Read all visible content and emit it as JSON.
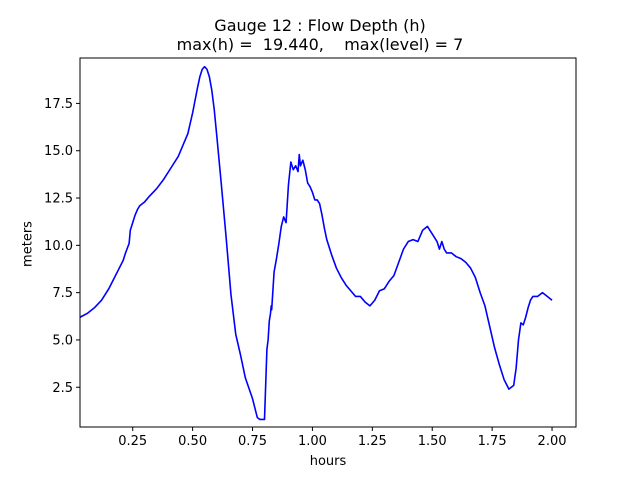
{
  "chart_data": {
    "type": "line",
    "title": "Gauge 12 : Flow Depth (h)",
    "subtitle": "max(h) =  19.440,    max(level) = 7",
    "xlabel": "hours",
    "ylabel": "meters",
    "xlim": [
      0.03,
      2.1
    ],
    "ylim": [
      0.4,
      19.9
    ],
    "xticks": [
      0.25,
      0.5,
      0.75,
      1.0,
      1.25,
      1.5,
      1.75,
      2.0
    ],
    "xtick_labels": [
      "0.25",
      "0.50",
      "0.75",
      "1.00",
      "1.25",
      "1.50",
      "1.75",
      "2.00"
    ],
    "yticks": [
      2.5,
      5.0,
      7.5,
      10.0,
      12.5,
      15.0,
      17.5
    ],
    "ytick_labels": [
      "2.5",
      "5.0",
      "7.5",
      "10.0",
      "12.5",
      "15.0",
      "17.5"
    ],
    "grid": false,
    "series": [
      {
        "color": "#0000ff",
        "x": [
          0.03,
          0.06,
          0.09,
          0.12,
          0.15,
          0.17,
          0.19,
          0.21,
          0.22,
          0.235,
          0.24,
          0.25,
          0.26,
          0.27,
          0.28,
          0.3,
          0.32,
          0.35,
          0.38,
          0.41,
          0.44,
          0.46,
          0.48,
          0.5,
          0.52,
          0.53,
          0.54,
          0.55,
          0.56,
          0.57,
          0.58,
          0.59,
          0.6,
          0.62,
          0.64,
          0.66,
          0.68,
          0.7,
          0.72,
          0.75,
          0.77,
          0.78,
          0.8,
          0.81,
          0.815,
          0.82,
          0.825,
          0.828,
          0.83,
          0.84,
          0.85,
          0.86,
          0.87,
          0.88,
          0.89,
          0.9,
          0.91,
          0.92,
          0.93,
          0.94,
          0.945,
          0.95,
          0.96,
          0.97,
          0.98,
          0.99,
          1.0,
          1.01,
          1.02,
          1.03,
          1.04,
          1.05,
          1.06,
          1.08,
          1.1,
          1.12,
          1.14,
          1.16,
          1.18,
          1.2,
          1.22,
          1.24,
          1.26,
          1.28,
          1.3,
          1.32,
          1.34,
          1.36,
          1.38,
          1.4,
          1.42,
          1.44,
          1.46,
          1.48,
          1.5,
          1.52,
          1.53,
          1.54,
          1.55,
          1.56,
          1.58,
          1.6,
          1.62,
          1.64,
          1.66,
          1.68,
          1.7,
          1.72,
          1.74,
          1.76,
          1.78,
          1.8,
          1.82,
          1.84,
          1.85,
          1.86,
          1.87,
          1.88,
          1.89,
          1.9,
          1.91,
          1.92,
          1.94,
          1.96,
          1.98,
          2.0
        ],
        "y": [
          6.2,
          6.4,
          6.7,
          7.1,
          7.7,
          8.2,
          8.7,
          9.2,
          9.6,
          10.1,
          10.8,
          11.2,
          11.6,
          11.9,
          12.1,
          12.3,
          12.6,
          13.0,
          13.5,
          14.1,
          14.7,
          15.3,
          15.9,
          17.0,
          18.3,
          18.9,
          19.3,
          19.44,
          19.3,
          18.9,
          18.2,
          17.2,
          15.9,
          13.2,
          10.4,
          7.4,
          5.3,
          4.2,
          3.0,
          1.9,
          0.9,
          0.8,
          0.8,
          4.5,
          5.0,
          6.0,
          6.4,
          6.8,
          6.6,
          8.6,
          9.3,
          10.1,
          11.0,
          11.5,
          11.2,
          13.2,
          14.4,
          14.0,
          14.2,
          13.9,
          14.8,
          14.2,
          14.5,
          14.0,
          13.3,
          13.1,
          12.8,
          12.4,
          12.4,
          12.2,
          11.6,
          10.9,
          10.3,
          9.5,
          8.8,
          8.3,
          7.9,
          7.6,
          7.3,
          7.3,
          7.0,
          6.8,
          7.1,
          7.6,
          7.7,
          8.1,
          8.4,
          9.1,
          9.8,
          10.2,
          10.3,
          10.2,
          10.8,
          11.0,
          10.6,
          10.2,
          9.8,
          10.2,
          9.8,
          9.6,
          9.6,
          9.4,
          9.3,
          9.1,
          8.8,
          8.3,
          7.5,
          6.8,
          5.7,
          4.6,
          3.7,
          2.9,
          2.4,
          2.6,
          3.5,
          5.0,
          5.9,
          5.8,
          6.2,
          6.7,
          7.1,
          7.3,
          7.3,
          7.5,
          7.3,
          7.1
        ]
      }
    ]
  }
}
